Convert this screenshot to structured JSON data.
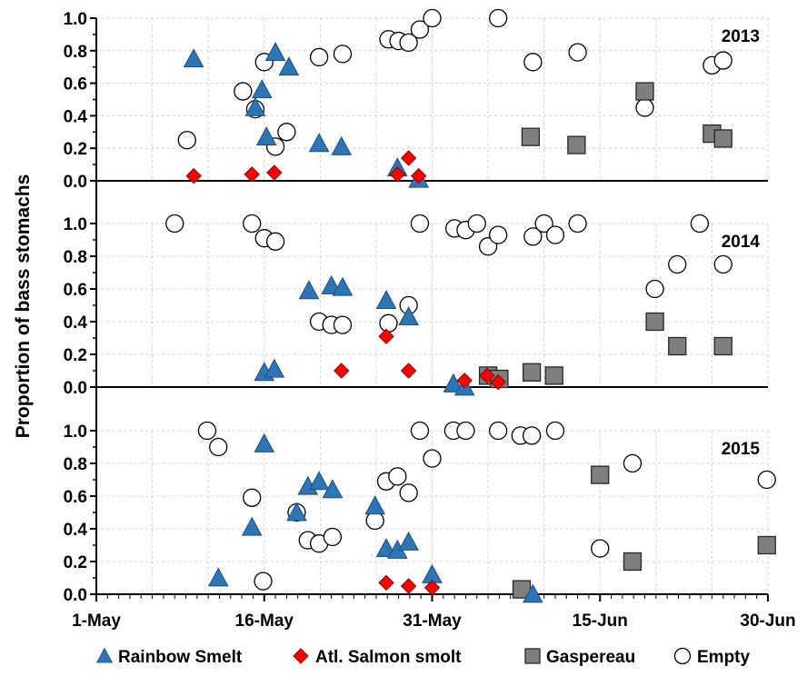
{
  "chart_data": {
    "type": "scatter",
    "ylabel": "Proportion of bass stomachs",
    "ylim": [
      0,
      1.0
    ],
    "y_ticks": [
      "0.0",
      "0.2",
      "0.4",
      "0.6",
      "0.8",
      "1.0"
    ],
    "x_ticks": [
      "1-May",
      "16-May",
      "31-May",
      "15-Jun",
      "30-Jun"
    ],
    "x_tick_days": [
      0,
      15,
      30,
      45,
      60
    ],
    "x_range_days": [
      0,
      60
    ],
    "x_day0": "1-May",
    "grid": true,
    "legend_position": "bottom",
    "legend": [
      {
        "key": "smelt",
        "label": "Rainbow Smelt",
        "marker": "triangle",
        "color": "#2e75b6"
      },
      {
        "key": "salmon",
        "label": "Atl. Salmon smolt",
        "marker": "diamond",
        "color": "#ff0000"
      },
      {
        "key": "gaspereau",
        "label": "Gaspereau",
        "marker": "square",
        "color": "#7f7f7f"
      },
      {
        "key": "empty",
        "label": "Empty",
        "marker": "circle",
        "color": "#ffffff"
      }
    ],
    "panels": [
      {
        "year": "2013",
        "series": {
          "smelt": [
            [
              8.7,
              0.75
            ],
            [
              14.2,
              0.45
            ],
            [
              14.8,
              0.56
            ],
            [
              15.2,
              0.27
            ],
            [
              16.0,
              0.79
            ],
            [
              17.2,
              0.7
            ],
            [
              19.9,
              0.23
            ],
            [
              21.9,
              0.21
            ],
            [
              26.9,
              0.08
            ],
            [
              28.8,
              0.01
            ]
          ],
          "salmon": [
            [
              8.7,
              0.03
            ],
            [
              13.9,
              0.04
            ],
            [
              15.9,
              0.05
            ],
            [
              26.9,
              0.04
            ],
            [
              27.9,
              0.14
            ],
            [
              28.8,
              0.03
            ]
          ],
          "gaspereau": [
            [
              38.8,
              0.27
            ],
            [
              42.9,
              0.22
            ],
            [
              49.0,
              0.55
            ],
            [
              55.0,
              0.29
            ],
            [
              56.0,
              0.26
            ]
          ],
          "empty": [
            [
              8.1,
              0.25
            ],
            [
              13.1,
              0.55
            ],
            [
              14.2,
              0.44
            ],
            [
              15.0,
              0.73
            ],
            [
              16.0,
              0.21
            ],
            [
              17.0,
              0.3
            ],
            [
              19.9,
              0.76
            ],
            [
              22.0,
              0.78
            ],
            [
              26.1,
              0.87
            ],
            [
              27.0,
              0.86
            ],
            [
              27.9,
              0.85
            ],
            [
              28.9,
              0.93
            ],
            [
              30.0,
              1.0
            ],
            [
              35.9,
              1.0
            ],
            [
              39.0,
              0.73
            ],
            [
              43.0,
              0.79
            ],
            [
              49.0,
              0.45
            ],
            [
              55.0,
              0.71
            ],
            [
              56.0,
              0.74
            ]
          ]
        }
      },
      {
        "year": "2014",
        "series": {
          "smelt": [
            [
              15.0,
              0.09
            ],
            [
              15.9,
              0.11
            ],
            [
              19.0,
              0.59
            ],
            [
              21.0,
              0.62
            ],
            [
              22.0,
              0.61
            ],
            [
              25.9,
              0.53
            ],
            [
              27.9,
              0.43
            ],
            [
              31.9,
              0.02
            ],
            [
              32.9,
              0.0
            ]
          ],
          "salmon": [
            [
              21.9,
              0.1
            ],
            [
              25.9,
              0.31
            ],
            [
              27.9,
              0.1
            ],
            [
              32.9,
              0.04
            ],
            [
              34.9,
              0.07
            ],
            [
              35.9,
              0.03
            ]
          ],
          "gaspereau": [
            [
              35.0,
              0.07
            ],
            [
              36.0,
              0.05
            ],
            [
              38.9,
              0.09
            ],
            [
              40.9,
              0.07
            ],
            [
              49.9,
              0.4
            ],
            [
              51.9,
              0.25
            ],
            [
              56.0,
              0.25
            ]
          ],
          "empty": [
            [
              7.0,
              1.0
            ],
            [
              13.9,
              1.0
            ],
            [
              15.0,
              0.91
            ],
            [
              16.0,
              0.89
            ],
            [
              19.9,
              0.4
            ],
            [
              21.0,
              0.38
            ],
            [
              22.0,
              0.38
            ],
            [
              26.1,
              0.39
            ],
            [
              27.9,
              0.5
            ],
            [
              28.9,
              1.0
            ],
            [
              32.0,
              0.97
            ],
            [
              33.0,
              0.96
            ],
            [
              34.0,
              1.0
            ],
            [
              35.0,
              0.86
            ],
            [
              35.9,
              0.93
            ],
            [
              39.0,
              0.92
            ],
            [
              40.0,
              1.0
            ],
            [
              41.0,
              0.93
            ],
            [
              43.0,
              1.0
            ],
            [
              49.9,
              0.6
            ],
            [
              51.9,
              0.75
            ],
            [
              53.9,
              1.0
            ],
            [
              56.0,
              0.75
            ]
          ]
        }
      },
      {
        "year": "2015",
        "series": {
          "smelt": [
            [
              10.9,
              0.1
            ],
            [
              13.9,
              0.41
            ],
            [
              15.0,
              0.92
            ],
            [
              17.9,
              0.5
            ],
            [
              18.9,
              0.66
            ],
            [
              19.9,
              0.69
            ],
            [
              21.1,
              0.64
            ],
            [
              24.9,
              0.54
            ],
            [
              25.9,
              0.28
            ],
            [
              26.9,
              0.27
            ],
            [
              27.9,
              0.32
            ],
            [
              30.0,
              0.12
            ],
            [
              39.0,
              0.0
            ]
          ],
          "salmon": [
            [
              25.9,
              0.07
            ],
            [
              27.9,
              0.05
            ],
            [
              30.0,
              0.04
            ]
          ],
          "gaspereau": [
            [
              38.0,
              0.03
            ],
            [
              45.0,
              0.73
            ],
            [
              47.9,
              0.2
            ],
            [
              59.9,
              0.3
            ]
          ],
          "empty": [
            [
              9.9,
              1.0
            ],
            [
              10.9,
              0.9
            ],
            [
              13.9,
              0.59
            ],
            [
              14.9,
              0.08
            ],
            [
              17.9,
              0.5
            ],
            [
              18.9,
              0.33
            ],
            [
              19.9,
              0.31
            ],
            [
              21.1,
              0.35
            ],
            [
              24.9,
              0.45
            ],
            [
              25.9,
              0.69
            ],
            [
              26.9,
              0.72
            ],
            [
              27.9,
              0.62
            ],
            [
              28.9,
              1.0
            ],
            [
              30.0,
              0.83
            ],
            [
              31.9,
              1.0
            ],
            [
              33.0,
              1.0
            ],
            [
              35.9,
              1.0
            ],
            [
              37.9,
              0.97
            ],
            [
              38.9,
              0.97
            ],
            [
              41.0,
              1.0
            ],
            [
              45.0,
              0.28
            ],
            [
              47.9,
              0.8
            ],
            [
              59.9,
              0.7
            ]
          ]
        }
      }
    ]
  }
}
